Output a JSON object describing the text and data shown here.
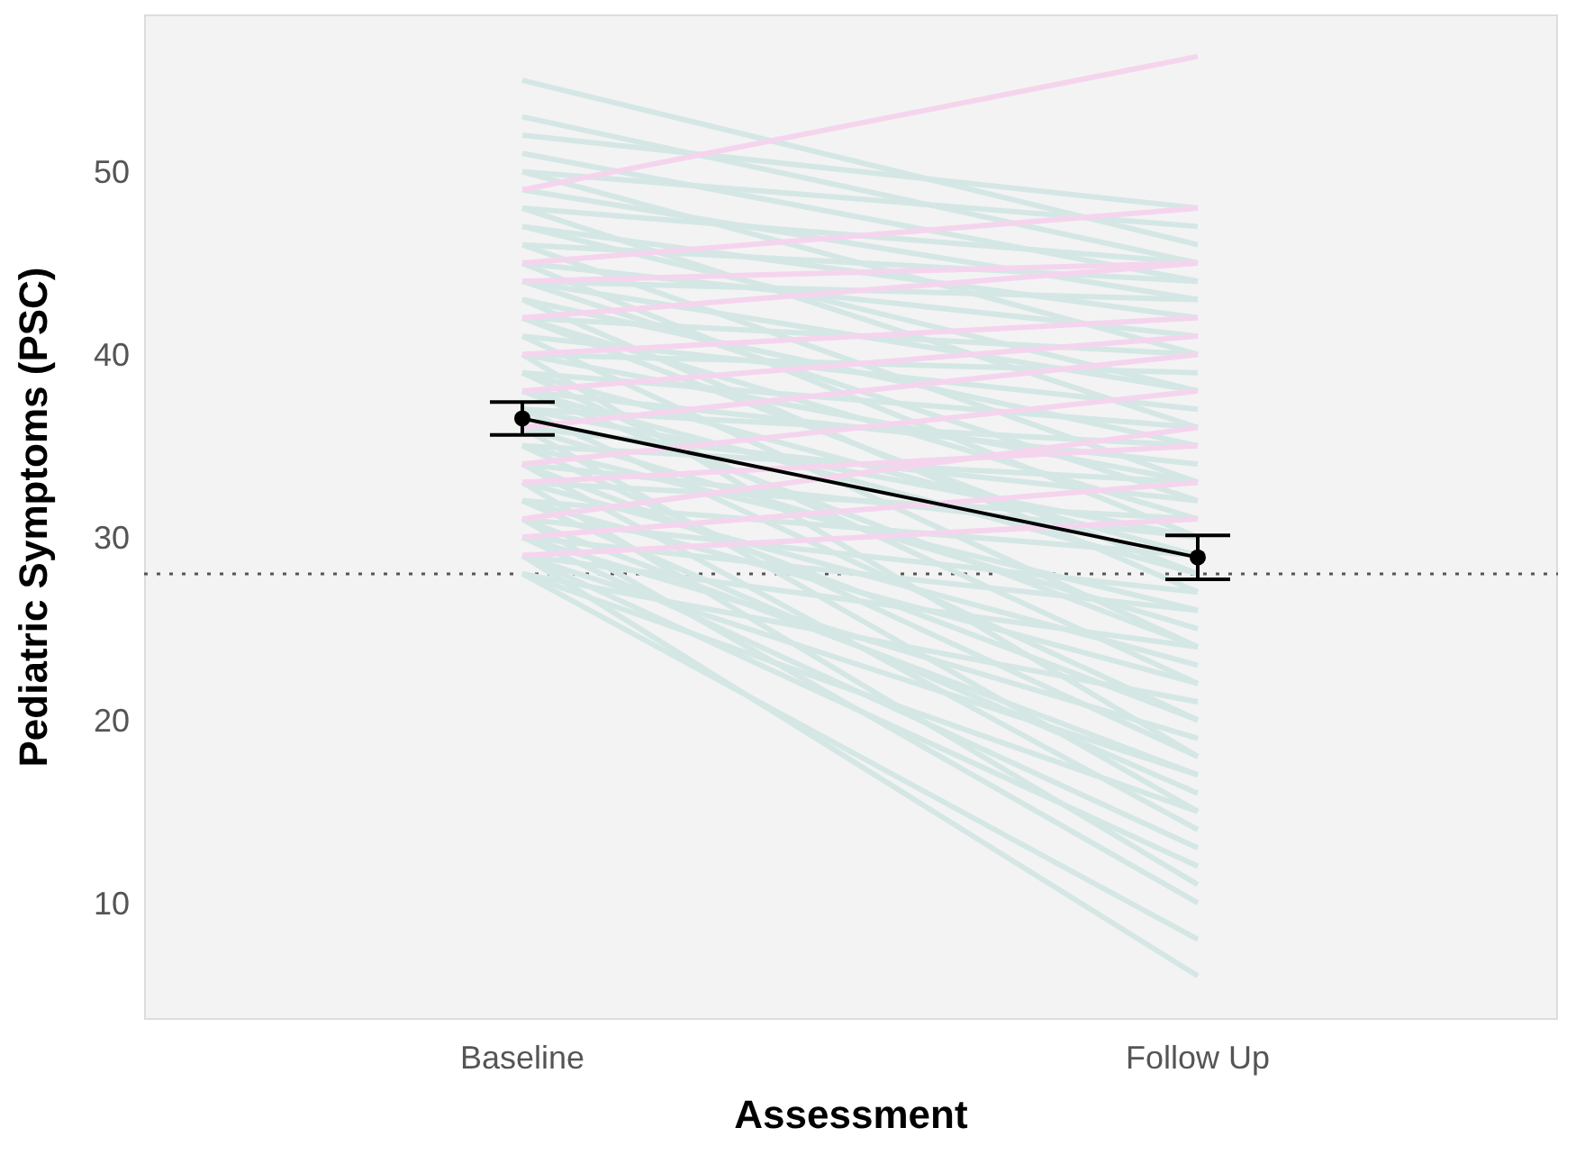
{
  "chart_data": {
    "type": "line",
    "xlabel": "Assessment",
    "ylabel": "Pediatric Symptoms (PSC)",
    "categories": [
      "Baseline",
      "Follow Up"
    ],
    "ylim": [
      3.6,
      58.6
    ],
    "yticks": [
      10,
      20,
      30,
      40,
      50
    ],
    "grid": false,
    "ref_lines": [
      {
        "axis": "y",
        "value": 28,
        "color": "#555555",
        "line_style": "dotted"
      }
    ],
    "series": [
      {
        "color": "#d4e7e5",
        "values": [
          55,
          46
        ]
      },
      {
        "color": "#d4e7e5",
        "values": [
          53,
          45
        ]
      },
      {
        "color": "#d4e7e5",
        "values": [
          52,
          48
        ]
      },
      {
        "color": "#d4e7e5",
        "values": [
          51,
          44
        ]
      },
      {
        "color": "#d4e7e5",
        "values": [
          50,
          47
        ]
      },
      {
        "color": "#d4e7e5",
        "values": [
          50,
          40
        ]
      },
      {
        "color": "#d4e7e5",
        "values": [
          49,
          43
        ]
      },
      {
        "color": "#d4e7e5",
        "values": [
          48,
          45
        ]
      },
      {
        "color": "#d4e7e5",
        "values": [
          48,
          36
        ]
      },
      {
        "color": "#d4e7e5",
        "values": [
          47,
          42
        ]
      },
      {
        "color": "#d4e7e5",
        "values": [
          47,
          38
        ]
      },
      {
        "color": "#d4e7e5",
        "values": [
          46,
          44
        ]
      },
      {
        "color": "#d4e7e5",
        "values": [
          46,
          33
        ]
      },
      {
        "color": "#d4e7e5",
        "values": [
          45,
          41
        ]
      },
      {
        "color": "#d4e7e5",
        "values": [
          45,
          30
        ]
      },
      {
        "color": "#d4e7e5",
        "values": [
          44,
          43
        ]
      },
      {
        "color": "#d4e7e5",
        "values": [
          44,
          38
        ]
      },
      {
        "color": "#d4e7e5",
        "values": [
          44,
          32
        ]
      },
      {
        "color": "#d4e7e5",
        "values": [
          43,
          35
        ]
      },
      {
        "color": "#d4e7e5",
        "values": [
          43,
          27
        ]
      },
      {
        "color": "#d4e7e5",
        "values": [
          42,
          40
        ]
      },
      {
        "color": "#d4e7e5",
        "values": [
          42,
          31
        ]
      },
      {
        "color": "#d4e7e5",
        "values": [
          42,
          28
        ]
      },
      {
        "color": "#d4e7e5",
        "values": [
          41,
          37
        ]
      },
      {
        "color": "#d4e7e5",
        "values": [
          41,
          24
        ]
      },
      {
        "color": "#d4e7e5",
        "values": [
          40,
          39
        ]
      },
      {
        "color": "#d4e7e5",
        "values": [
          40,
          33
        ]
      },
      {
        "color": "#d4e7e5",
        "values": [
          40,
          18
        ]
      },
      {
        "color": "#d4e7e5",
        "values": [
          39,
          36
        ]
      },
      {
        "color": "#d4e7e5",
        "values": [
          39,
          29
        ]
      },
      {
        "color": "#d4e7e5",
        "values": [
          39,
          22
        ]
      },
      {
        "color": "#d4e7e5",
        "values": [
          38,
          34
        ]
      },
      {
        "color": "#d4e7e5",
        "values": [
          38,
          28
        ]
      },
      {
        "color": "#d4e7e5",
        "values": [
          38,
          24
        ]
      },
      {
        "color": "#d4e7e5",
        "values": [
          37,
          35
        ]
      },
      {
        "color": "#d4e7e5",
        "values": [
          37,
          30
        ]
      },
      {
        "color": "#d4e7e5",
        "values": [
          37,
          20
        ]
      },
      {
        "color": "#d4e7e5",
        "values": [
          36,
          32
        ]
      },
      {
        "color": "#d4e7e5",
        "values": [
          36,
          25
        ]
      },
      {
        "color": "#d4e7e5",
        "values": [
          36,
          15
        ]
      },
      {
        "color": "#d4e7e5",
        "values": [
          35,
          33
        ]
      },
      {
        "color": "#d4e7e5",
        "values": [
          35,
          26
        ]
      },
      {
        "color": "#d4e7e5",
        "values": [
          35,
          18
        ]
      },
      {
        "color": "#d4e7e5",
        "values": [
          34,
          30
        ]
      },
      {
        "color": "#d4e7e5",
        "values": [
          34,
          20
        ]
      },
      {
        "color": "#d4e7e5",
        "values": [
          34,
          14
        ]
      },
      {
        "color": "#d4e7e5",
        "values": [
          33,
          31
        ]
      },
      {
        "color": "#d4e7e5",
        "values": [
          33,
          23
        ]
      },
      {
        "color": "#d4e7e5",
        "values": [
          33,
          11
        ]
      },
      {
        "color": "#d4e7e5",
        "values": [
          32,
          29
        ]
      },
      {
        "color": "#d4e7e5",
        "values": [
          32,
          22
        ]
      },
      {
        "color": "#d4e7e5",
        "values": [
          32,
          16
        ]
      },
      {
        "color": "#d4e7e5",
        "values": [
          31,
          27
        ]
      },
      {
        "color": "#d4e7e5",
        "values": [
          31,
          17
        ]
      },
      {
        "color": "#d4e7e5",
        "values": [
          31,
          10
        ]
      },
      {
        "color": "#d4e7e5",
        "values": [
          30,
          26
        ]
      },
      {
        "color": "#d4e7e5",
        "values": [
          30,
          19
        ]
      },
      {
        "color": "#d4e7e5",
        "values": [
          30,
          13
        ]
      },
      {
        "color": "#d4e7e5",
        "values": [
          29,
          24
        ]
      },
      {
        "color": "#d4e7e5",
        "values": [
          29,
          17
        ]
      },
      {
        "color": "#d4e7e5",
        "values": [
          29,
          12
        ]
      },
      {
        "color": "#d4e7e5",
        "values": [
          29,
          6
        ]
      },
      {
        "color": "#d4e7e5",
        "values": [
          28,
          21
        ]
      },
      {
        "color": "#d4e7e5",
        "values": [
          28,
          15
        ]
      },
      {
        "color": "#d4e7e5",
        "values": [
          28,
          8
        ]
      },
      {
        "color": "#f5d5ee",
        "values": [
          49,
          56.3
        ]
      },
      {
        "color": "#f5d5ee",
        "values": [
          45,
          48
        ]
      },
      {
        "color": "#f5d5ee",
        "values": [
          44,
          45
        ]
      },
      {
        "color": "#f5d5ee",
        "values": [
          42,
          45
        ]
      },
      {
        "color": "#f5d5ee",
        "values": [
          40,
          42
        ]
      },
      {
        "color": "#f5d5ee",
        "values": [
          38,
          41
        ]
      },
      {
        "color": "#f5d5ee",
        "values": [
          36,
          40
        ]
      },
      {
        "color": "#f5d5ee",
        "values": [
          34,
          38
        ]
      },
      {
        "color": "#f5d5ee",
        "values": [
          33,
          35
        ]
      },
      {
        "color": "#f5d5ee",
        "values": [
          31,
          36
        ]
      },
      {
        "color": "#f5d5ee",
        "values": [
          30,
          33
        ]
      },
      {
        "color": "#f5d5ee",
        "values": [
          29,
          31
        ]
      },
      {
        "color": "#000000",
        "values": [
          36.5,
          28.9
        ],
        "errors": [
          0.9,
          1.2
        ],
        "marker": "circle"
      }
    ]
  }
}
